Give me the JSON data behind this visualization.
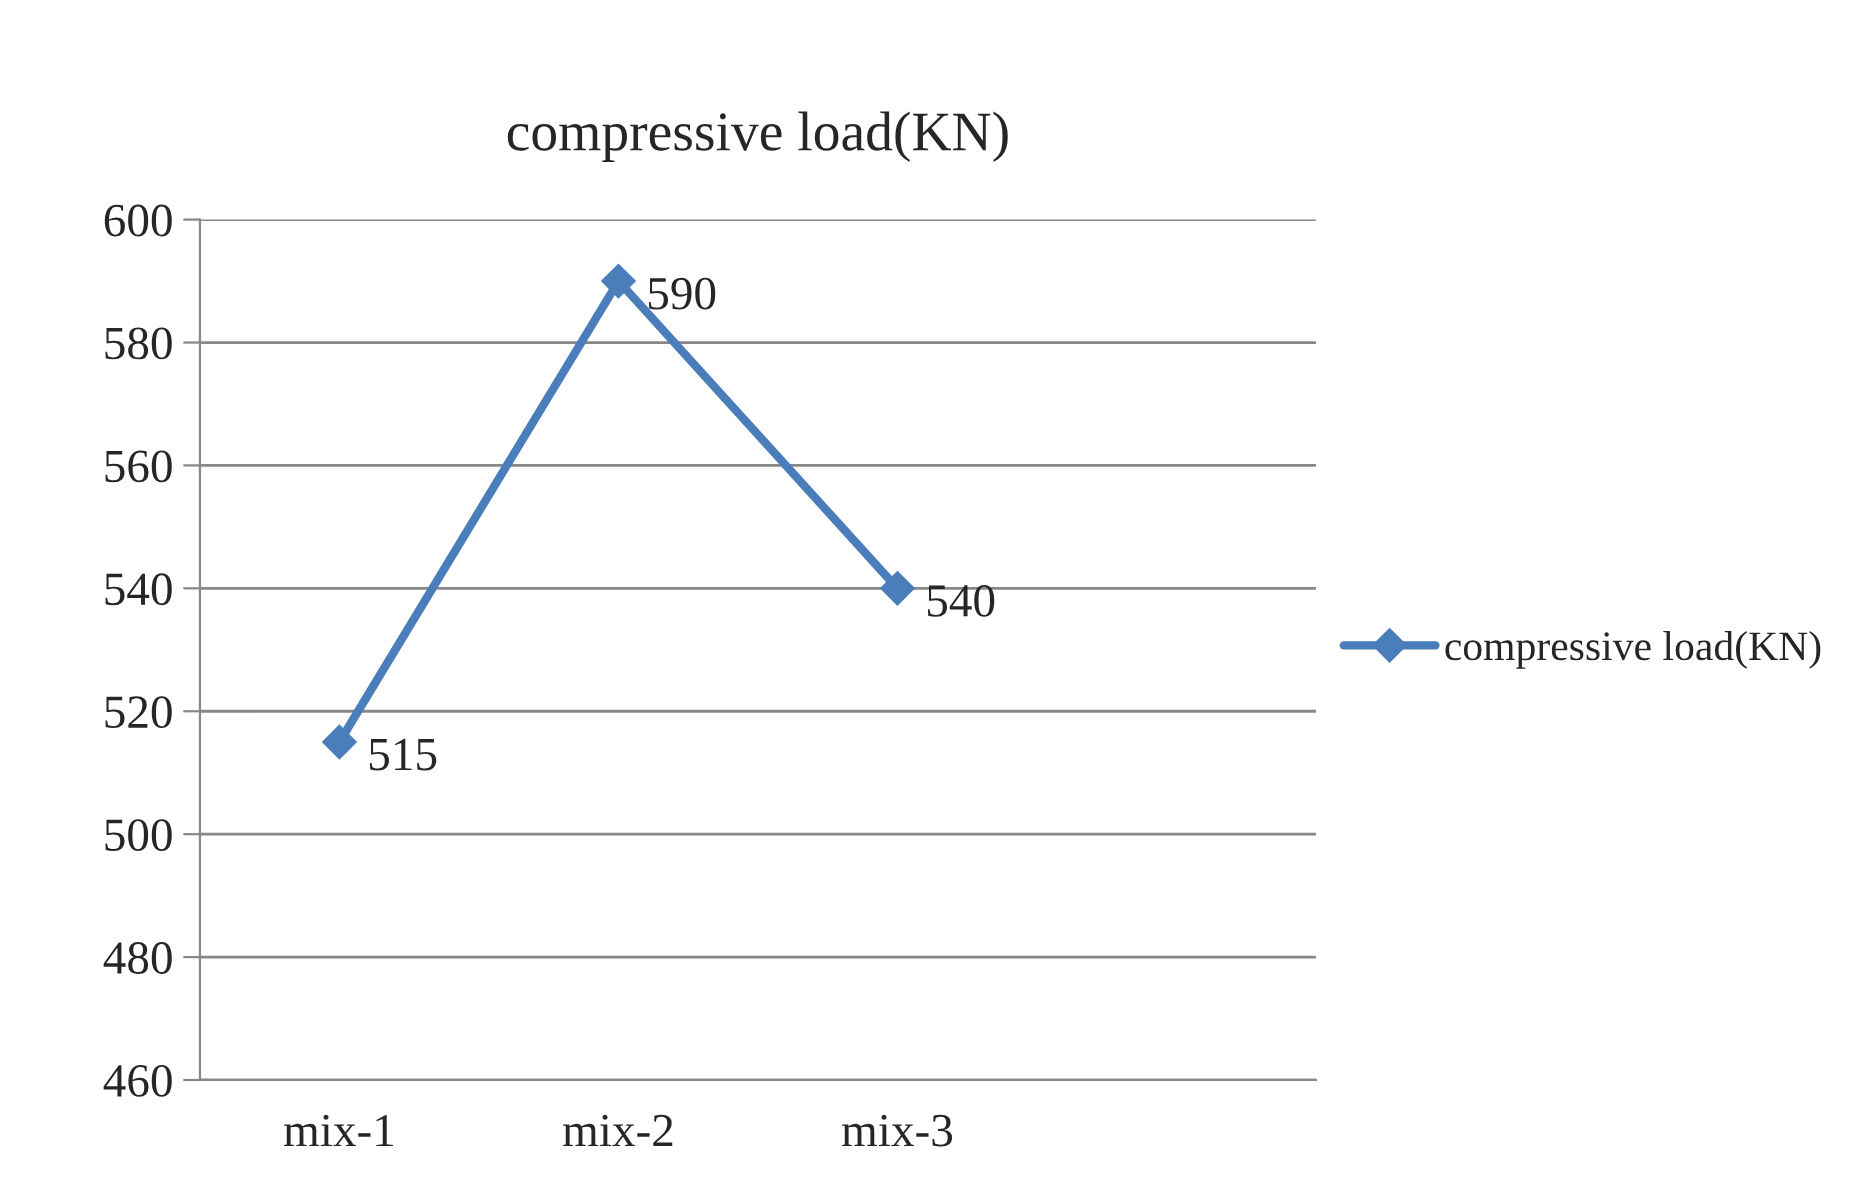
{
  "chart_data": {
    "type": "line",
    "title": "compressive load(KN)",
    "categories": [
      "mix-1",
      "mix-2",
      "mix-3",
      null
    ],
    "series": [
      {
        "name": "compressive load(KN)",
        "color": "#4a7ebb",
        "values": [
          515,
          590,
          540,
          null
        ]
      }
    ],
    "ylim": [
      460,
      600
    ],
    "yticks": [
      460,
      480,
      500,
      520,
      540,
      560,
      580,
      600
    ],
    "grid": "y",
    "legend": "right",
    "marker": "diamond",
    "line_style": "solid",
    "data_labels": true
  }
}
